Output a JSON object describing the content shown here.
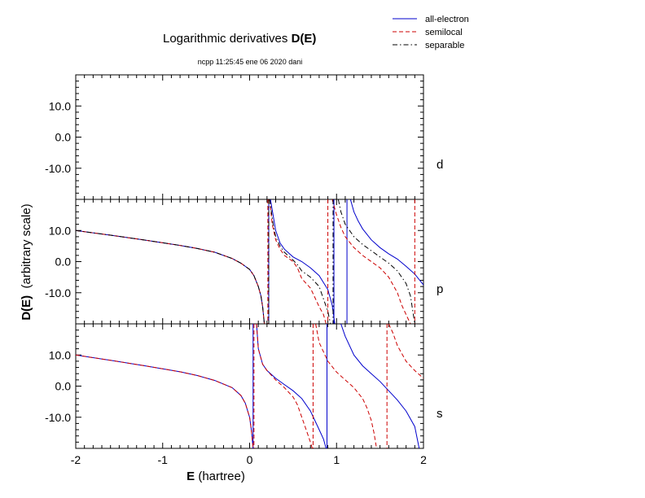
{
  "chart_data": {
    "type": "line",
    "title_prefix": "Logarithmic derivatives ",
    "title_bold": "D(E)",
    "subtitle": "ncpp 11:25:45 ene 06 2020 dani",
    "xlabel_bold": "E",
    "xlabel_rest": " (hartree)",
    "ylabel_bold": "D(E)",
    "ylabel_rest": "  (arbitrary scale)",
    "xlim": [
      -2,
      2
    ],
    "ylim": [
      -20,
      20
    ],
    "x_ticks": [
      -2,
      -1,
      0,
      1,
      2
    ],
    "y_ticks": [
      10.0,
      0.0,
      -10.0
    ],
    "x_tick_labels": [
      "-2",
      "-1",
      "0",
      "1",
      "2"
    ],
    "y_tick_labels": [
      "10.0",
      "0.0",
      "-10.0"
    ],
    "legend": [
      {
        "label": "all-electron",
        "color": "#0000cc",
        "dash": "solid"
      },
      {
        "label": "semilocal",
        "color": "#cc0000",
        "dash": "dashed"
      },
      {
        "label": "separable",
        "color": "#000000",
        "dash": "dashdot"
      }
    ],
    "panels": [
      {
        "label": "d",
        "series": []
      },
      {
        "label": "p",
        "series": [
          {
            "name": "all-electron",
            "color": "#0000cc",
            "dash": "solid",
            "branches": [
              {
                "x": [
                  -2.0,
                  -1.6,
                  -1.2,
                  -0.8,
                  -0.6,
                  -0.4,
                  -0.2,
                  -0.1,
                  0.0,
                  0.05,
                  0.1,
                  0.13,
                  0.15,
                  0.17
                ],
                "y": [
                  10.0,
                  8.5,
                  6.9,
                  5.2,
                  4.2,
                  3.0,
                  1.0,
                  -0.5,
                  -2.5,
                  -4.5,
                  -8.0,
                  -11.0,
                  -14.5,
                  -20.0
                ]
              },
              {
                "x": [
                  0.24,
                  0.27,
                  0.3,
                  0.35,
                  0.4,
                  0.5,
                  0.6,
                  0.7,
                  0.8,
                  0.9,
                  0.95,
                  0.98
                ],
                "y": [
                  20.0,
                  15.0,
                  10.0,
                  6.0,
                  4.0,
                  1.5,
                  0.0,
                  -2.0,
                  -4.5,
                  -9.0,
                  -14.0,
                  -20.0
                ]
              },
              {
                "x": [
                  1.16,
                  1.2,
                  1.25,
                  1.3,
                  1.4,
                  1.5,
                  1.6,
                  1.7,
                  1.8,
                  1.9,
                  2.0
                ],
                "y": [
                  20.0,
                  16.0,
                  13.0,
                  10.5,
                  7.0,
                  4.5,
                  2.5,
                  0.8,
                  -1.5,
                  -4.0,
                  -7.5
                ]
              }
            ],
            "vlines": [
              0.22,
              0.97,
              1.12
            ]
          },
          {
            "name": "semilocal",
            "color": "#cc0000",
            "dash": "dashed",
            "branches": [
              {
                "x": [
                  -2.0,
                  -1.6,
                  -1.2,
                  -0.8,
                  -0.6,
                  -0.4,
                  -0.2,
                  -0.1,
                  0.0,
                  0.05,
                  0.1,
                  0.13,
                  0.15,
                  0.17
                ],
                "y": [
                  10.0,
                  8.5,
                  6.9,
                  5.2,
                  4.2,
                  3.0,
                  1.0,
                  -0.5,
                  -2.5,
                  -4.5,
                  -8.0,
                  -11.0,
                  -14.5,
                  -20.0
                ]
              },
              {
                "x": [
                  0.23,
                  0.26,
                  0.3,
                  0.35,
                  0.4,
                  0.5,
                  0.55,
                  0.6,
                  0.7,
                  0.75,
                  0.8,
                  0.85,
                  0.88
                ],
                "y": [
                  20.0,
                  12.0,
                  7.0,
                  4.0,
                  2.0,
                  0.0,
                  -2.0,
                  -5.5,
                  -8.5,
                  -11.5,
                  -14.5,
                  -17.0,
                  -20.0
                ]
              },
              {
                "x": [
                  0.95,
                  1.0,
                  1.05,
                  1.1,
                  1.2,
                  1.3,
                  1.4,
                  1.5,
                  1.6,
                  1.7,
                  1.75,
                  1.8,
                  1.85
                ],
                "y": [
                  20.0,
                  15.0,
                  11.0,
                  8.0,
                  4.5,
                  2.0,
                  0.0,
                  -2.0,
                  -5.0,
                  -10.0,
                  -14.0,
                  -17.0,
                  -20.0
                ]
              }
            ],
            "vlines": [
              0.21,
              0.9,
              1.9
            ]
          },
          {
            "name": "separable",
            "color": "#000000",
            "dash": "dashdot",
            "branches": [
              {
                "x": [
                  -2.0,
                  -1.6,
                  -1.2,
                  -0.8,
                  -0.6,
                  -0.4,
                  -0.2,
                  -0.1,
                  0.0,
                  0.05,
                  0.1,
                  0.13,
                  0.15,
                  0.17
                ],
                "y": [
                  10.0,
                  8.5,
                  6.9,
                  5.2,
                  4.2,
                  3.0,
                  1.0,
                  -0.5,
                  -2.5,
                  -4.5,
                  -8.0,
                  -11.0,
                  -14.5,
                  -20.0
                ]
              },
              {
                "x": [
                  0.23,
                  0.27,
                  0.3,
                  0.35,
                  0.4,
                  0.5,
                  0.55,
                  0.6,
                  0.7,
                  0.8,
                  0.85,
                  0.9,
                  0.93
                ],
                "y": [
                  20.0,
                  12.0,
                  8.0,
                  5.0,
                  3.0,
                  0.5,
                  -1.0,
                  -3.0,
                  -5.0,
                  -8.0,
                  -12.0,
                  -16.0,
                  -20.0
                ]
              },
              {
                "x": [
                  1.02,
                  1.05,
                  1.1,
                  1.2,
                  1.3,
                  1.4,
                  1.5,
                  1.6,
                  1.7,
                  1.8,
                  1.85,
                  1.9
                ],
                "y": [
                  20.0,
                  16.0,
                  12.0,
                  8.0,
                  5.5,
                  3.5,
                  1.5,
                  -0.5,
                  -3.0,
                  -7.0,
                  -11.0,
                  -20.0
                ]
              }
            ],
            "vlines": [
              0.22,
              0.96
            ]
          }
        ]
      },
      {
        "label": "s",
        "series": [
          {
            "name": "all-electron",
            "color": "#0000cc",
            "dash": "solid",
            "branches": [
              {
                "x": [
                  -2.0,
                  -1.6,
                  -1.2,
                  -0.8,
                  -0.6,
                  -0.4,
                  -0.2,
                  -0.1,
                  -0.05,
                  0.0,
                  0.02,
                  0.04
                ],
                "y": [
                  10.0,
                  8.3,
                  6.5,
                  4.6,
                  3.4,
                  1.8,
                  -0.5,
                  -3.0,
                  -5.5,
                  -10.0,
                  -14.0,
                  -20.0
                ]
              },
              {
                "x": [
                  0.08,
                  0.1,
                  0.15,
                  0.2,
                  0.3,
                  0.4,
                  0.5,
                  0.6,
                  0.7,
                  0.75,
                  0.8,
                  0.85,
                  0.88
                ],
                "y": [
                  20.0,
                  12.0,
                  7.0,
                  5.0,
                  2.5,
                  0.5,
                  -1.5,
                  -4.0,
                  -8.0,
                  -11.0,
                  -14.0,
                  -17.0,
                  -20.0
                ]
              },
              {
                "x": [
                  1.05,
                  1.1,
                  1.2,
                  1.3,
                  1.4,
                  1.5,
                  1.6,
                  1.7,
                  1.8,
                  1.9,
                  1.95
                ],
                "y": [
                  20.0,
                  16.0,
                  10.0,
                  6.5,
                  4.0,
                  1.5,
                  -1.5,
                  -4.5,
                  -8.0,
                  -13.0,
                  -20.0
                ]
              }
            ],
            "vlines": [
              0.04,
              0.89
            ]
          },
          {
            "name": "semilocal",
            "color": "#cc0000",
            "dash": "dashed",
            "branches": [
              {
                "x": [
                  -2.0,
                  -1.6,
                  -1.2,
                  -0.8,
                  -0.6,
                  -0.4,
                  -0.2,
                  -0.1,
                  -0.05,
                  0.0,
                  0.02,
                  0.04
                ],
                "y": [
                  10.0,
                  8.3,
                  6.5,
                  4.6,
                  3.4,
                  1.8,
                  -0.5,
                  -3.0,
                  -5.5,
                  -10.0,
                  -14.0,
                  -20.0
                ]
              },
              {
                "x": [
                  0.08,
                  0.1,
                  0.15,
                  0.2,
                  0.3,
                  0.4,
                  0.5,
                  0.55,
                  0.6,
                  0.65,
                  0.7,
                  0.72
                ],
                "y": [
                  20.0,
                  12.0,
                  7.0,
                  5.0,
                  2.0,
                  -0.5,
                  -3.5,
                  -6.0,
                  -10.0,
                  -14.0,
                  -18.0,
                  -20.0
                ]
              },
              {
                "x": [
                  0.76,
                  0.8,
                  0.9,
                  1.0,
                  1.1,
                  1.2,
                  1.3,
                  1.35,
                  1.4,
                  1.43,
                  1.46
                ],
                "y": [
                  20.0,
                  14.0,
                  8.0,
                  4.5,
                  2.0,
                  -0.5,
                  -4.0,
                  -7.0,
                  -11.0,
                  -15.0,
                  -20.0
                ]
              },
              {
                "x": [
                  1.6,
                  1.65,
                  1.7,
                  1.8,
                  1.9,
                  2.0
                ],
                "y": [
                  20.0,
                  17.0,
                  13.0,
                  8.0,
                  5.0,
                  2.5
                ]
              }
            ],
            "vlines": [
              0.05,
              0.73,
              1.58
            ]
          }
        ]
      }
    ]
  }
}
